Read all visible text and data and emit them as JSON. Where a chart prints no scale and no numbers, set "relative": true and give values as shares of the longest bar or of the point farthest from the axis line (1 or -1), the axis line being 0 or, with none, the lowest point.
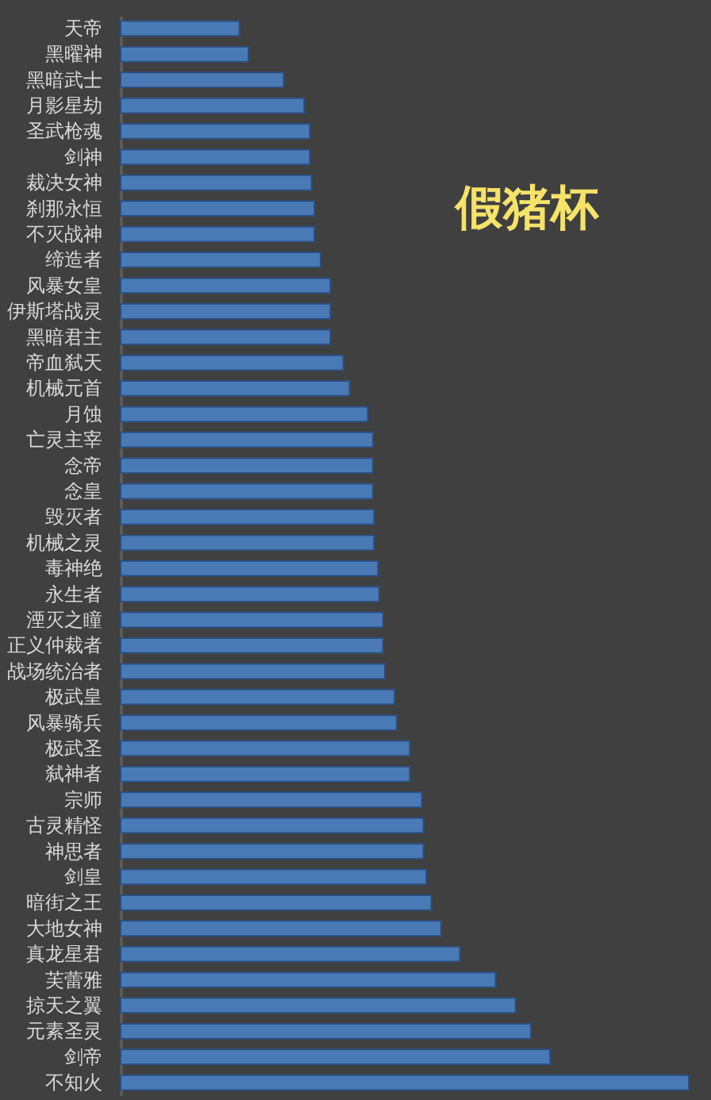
{
  "chart_data": {
    "type": "bar",
    "orientation": "horizontal",
    "relative": true,
    "title": "假猪杯",
    "color": "#4a7ab5",
    "categories": [
      "天帝",
      "黑曜神",
      "黑暗武士",
      "月影星劫",
      "圣武枪魂",
      "剑神",
      "裁决女神",
      "刹那永恒",
      "不灭战神",
      "缔造者",
      "风暴女皇",
      "伊斯塔战灵",
      "黑暗君主",
      "帝血弑天",
      "机械元首",
      "月蚀",
      "亡灵主宰",
      "念帝",
      "念皇",
      "毁灭者",
      "机械之灵",
      "毒神绝",
      "永生者",
      "湮灭之瞳",
      "正义仲裁者",
      "战场统治者",
      "极武皇",
      "风暴骑兵",
      "极武圣",
      "弑神者",
      "宗师",
      "古灵精怪",
      "神思者",
      "剑皇",
      "暗街之王",
      "大地女神",
      "真龙星君",
      "芙蕾雅",
      "掠天之翼",
      "元素圣灵",
      "剑帝",
      "不知火"
    ],
    "values": [
      0.209,
      0.225,
      0.287,
      0.323,
      0.333,
      0.333,
      0.336,
      0.341,
      0.341,
      0.352,
      0.369,
      0.369,
      0.369,
      0.392,
      0.403,
      0.435,
      0.444,
      0.444,
      0.444,
      0.446,
      0.446,
      0.453,
      0.455,
      0.462,
      0.462,
      0.465,
      0.482,
      0.486,
      0.509,
      0.509,
      0.53,
      0.533,
      0.533,
      0.538,
      0.547,
      0.564,
      0.597,
      0.66,
      0.695,
      0.722,
      0.756,
      1
    ]
  }
}
